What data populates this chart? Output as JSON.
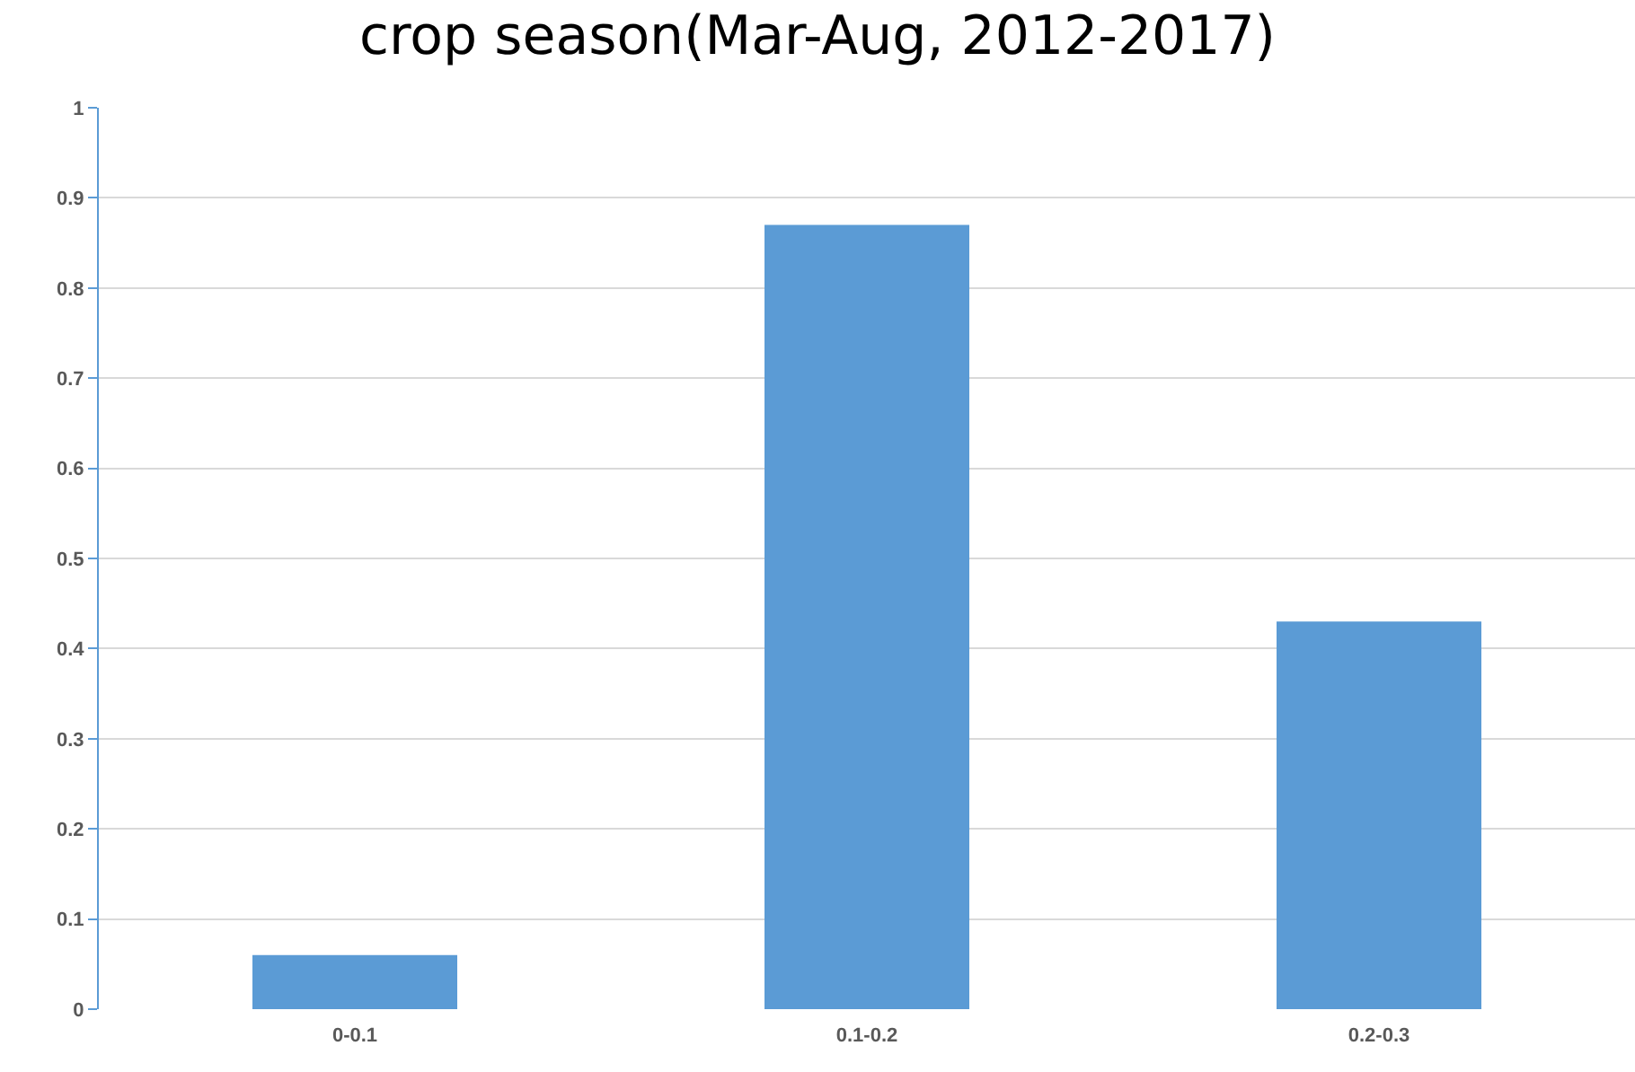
{
  "chart_data": {
    "type": "bar",
    "title": "crop season(Mar-Aug, 2012-2017)",
    "categories": [
      "0-0.1",
      "0.1-0.2",
      "0.2-0.3"
    ],
    "values": [
      0.06,
      0.87,
      0.43
    ],
    "color": "#5b9bd5",
    "ylim": [
      0,
      1
    ],
    "yticks": [
      0,
      0.1,
      0.2,
      0.3,
      0.4,
      0.5,
      0.6,
      0.7,
      0.8,
      0.9,
      1
    ],
    "grid": "y"
  }
}
